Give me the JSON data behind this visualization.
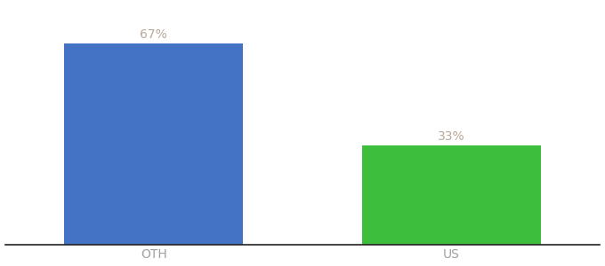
{
  "categories": [
    "OTH",
    "US"
  ],
  "values": [
    67,
    33
  ],
  "bar_colors": [
    "#4472c4",
    "#3dbf3d"
  ],
  "labels": [
    "67%",
    "33%"
  ],
  "background_color": "#ffffff",
  "label_color": "#b8a898",
  "xlabel_color": "#a0a0a0",
  "bar_width": 0.6,
  "xlim": [
    -0.5,
    1.5
  ],
  "ylim": [
    0,
    80
  ],
  "label_fontsize": 10,
  "tick_fontsize": 10,
  "spine_color": "#222222"
}
